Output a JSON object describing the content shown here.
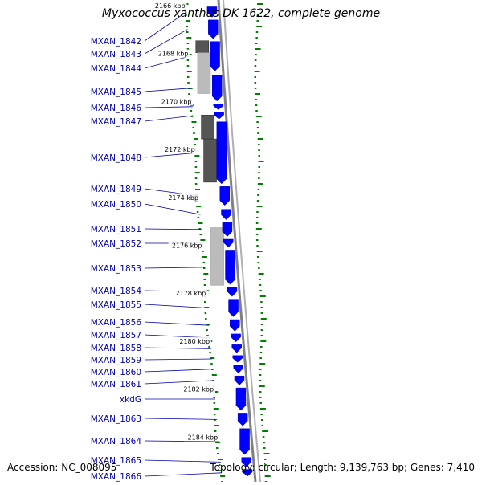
{
  "title": "Myxococcus xanthus DK 1622, complete genome",
  "footer": {
    "accession": "Accession: NC_008095",
    "topology": "Topology: circular; Length: 9,139,763 bp; Genes: 7,410"
  },
  "colors": {
    "gene": "#0000ff",
    "gene_label": "#0000aa",
    "gc_dots": "#008000",
    "backbone": "#808080",
    "shade_dark": "#555555",
    "shade_light": "#bbbbbb"
  },
  "ruler_labels": [
    {
      "text": "2166 kbp",
      "kbp": 2166
    },
    {
      "text": "2168 kbp",
      "kbp": 2168
    },
    {
      "text": "2170 kbp",
      "kbp": 2170
    },
    {
      "text": "2172 kbp",
      "kbp": 2172
    },
    {
      "text": "2174 kbp",
      "kbp": 2174
    },
    {
      "text": "2176 kbp",
      "kbp": 2176
    },
    {
      "text": "2178 kbp",
      "kbp": 2178
    },
    {
      "text": "2180 kbp",
      "kbp": 2180
    },
    {
      "text": "2182 kbp",
      "kbp": 2182
    },
    {
      "text": "2184 kbp",
      "kbp": 2184
    }
  ],
  "genes": [
    {
      "label": "MXAN_1842",
      "start_kbp": 2165.95,
      "end_kbp": 2166.45
    },
    {
      "label": "MXAN_1843",
      "start_kbp": 2166.5,
      "end_kbp": 2167.35
    },
    {
      "label": "MXAN_1844",
      "start_kbp": 2167.4,
      "end_kbp": 2168.7
    },
    {
      "label": "MXAN_1845",
      "start_kbp": 2168.8,
      "end_kbp": 2169.95
    },
    {
      "label": "MXAN_1846",
      "start_kbp": 2170.0,
      "end_kbp": 2170.3
    },
    {
      "label": "MXAN_1847",
      "start_kbp": 2170.35,
      "end_kbp": 2170.7
    },
    {
      "label": "MXAN_1848",
      "start_kbp": 2170.75,
      "end_kbp": 2173.4
    },
    {
      "label": "MXAN_1849",
      "start_kbp": 2173.45,
      "end_kbp": 2174.3
    },
    {
      "label": "MXAN_1850",
      "start_kbp": 2174.4,
      "end_kbp": 2174.9
    },
    {
      "label": "MXAN_1851",
      "start_kbp": 2174.95,
      "end_kbp": 2175.6
    },
    {
      "label": "MXAN_1852",
      "start_kbp": 2175.65,
      "end_kbp": 2176.05
    },
    {
      "label": "MXAN_1853",
      "start_kbp": 2176.1,
      "end_kbp": 2177.6
    },
    {
      "label": "MXAN_1854",
      "start_kbp": 2177.65,
      "end_kbp": 2178.1
    },
    {
      "label": "MXAN_1855",
      "start_kbp": 2178.15,
      "end_kbp": 2178.95
    },
    {
      "label": "MXAN_1856",
      "start_kbp": 2179.0,
      "end_kbp": 2179.55
    },
    {
      "label": "MXAN_1857",
      "start_kbp": 2179.6,
      "end_kbp": 2180.0
    },
    {
      "label": "MXAN_1858",
      "start_kbp": 2180.05,
      "end_kbp": 2180.45
    },
    {
      "label": "MXAN_1859",
      "start_kbp": 2180.5,
      "end_kbp": 2180.85
    },
    {
      "label": "MXAN_1860",
      "start_kbp": 2180.9,
      "end_kbp": 2181.3
    },
    {
      "label": "MXAN_1861",
      "start_kbp": 2181.35,
      "end_kbp": 2181.8
    },
    {
      "label": "xkdG",
      "start_kbp": 2181.85,
      "end_kbp": 2182.85
    },
    {
      "label": "MXAN_1863",
      "start_kbp": 2182.9,
      "end_kbp": 2183.5
    },
    {
      "label": "MXAN_1864",
      "start_kbp": 2183.55,
      "end_kbp": 2184.7
    },
    {
      "label": "MXAN_1865",
      "start_kbp": 2184.75,
      "end_kbp": 2185.2
    },
    {
      "label": "MXAN_1866",
      "start_kbp": 2185.25,
      "end_kbp": 2185.6
    }
  ],
  "shaded_regions": [
    {
      "start_kbp": 2167.4,
      "end_kbp": 2167.9,
      "tone": "dark"
    },
    {
      "start_kbp": 2167.9,
      "end_kbp": 2169.6,
      "tone": "light"
    },
    {
      "start_kbp": 2170.5,
      "end_kbp": 2171.5,
      "tone": "dark"
    },
    {
      "start_kbp": 2171.5,
      "end_kbp": 2173.3,
      "tone": "dark"
    },
    {
      "start_kbp": 2175.2,
      "end_kbp": 2177.6,
      "tone": "light"
    }
  ]
}
